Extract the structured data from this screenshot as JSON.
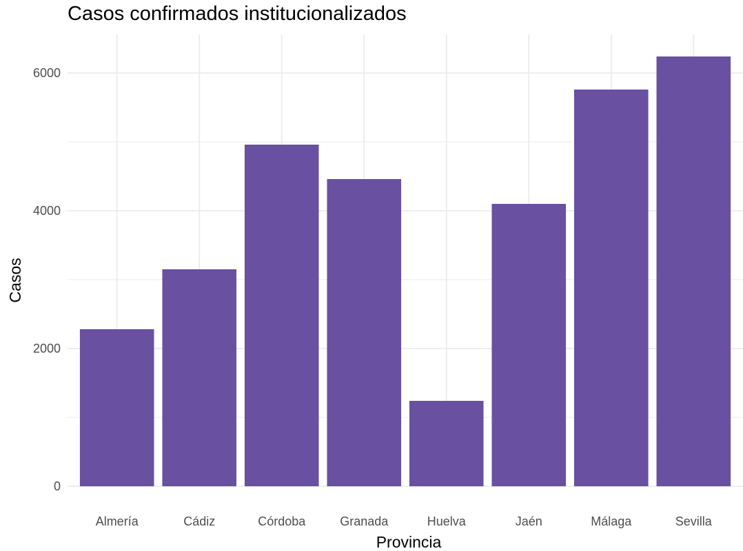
{
  "chart_data": {
    "type": "bar",
    "title": "Casos confirmados institucionalizados",
    "xlabel": "Provincia",
    "ylabel": "Casos",
    "categories": [
      "Almería",
      "Cádiz",
      "Córdoba",
      "Granada",
      "Huelva",
      "Jaén",
      "Málaga",
      "Sevilla"
    ],
    "values": [
      2280,
      3150,
      4960,
      4460,
      1240,
      4100,
      5760,
      6240
    ],
    "ylim": [
      0,
      6500
    ],
    "yticks": [
      0,
      2000,
      4000,
      6000
    ],
    "ytick_labels": [
      "0",
      "2000",
      "4000",
      "6000"
    ],
    "grid": true,
    "bar_color": "#6950a1",
    "grid_color": "#ebebeb"
  }
}
